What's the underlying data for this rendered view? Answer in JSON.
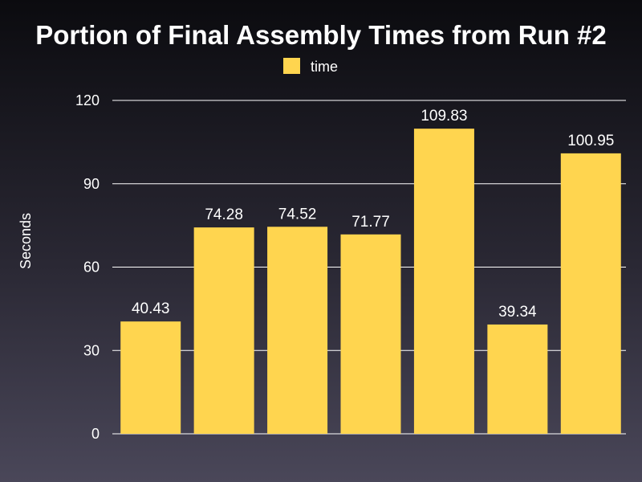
{
  "chart_data": {
    "type": "bar",
    "title": "Portion of Final Assembly Times from Run #2",
    "xlabel": "",
    "ylabel": "Seconds",
    "ylim": [
      0,
      120
    ],
    "yticks": [
      "0",
      "30",
      "60",
      "90",
      "120"
    ],
    "grid": true,
    "legend_position": "top-center",
    "series": [
      {
        "name": "time",
        "color": "#ffd54f",
        "values": [
          40.43,
          74.28,
          74.52,
          71.77,
          109.83,
          39.34,
          100.95
        ],
        "data_labels": [
          "40.43",
          "74.28",
          "74.52",
          "71.77",
          "109.83",
          "39.34",
          "100.95"
        ]
      }
    ]
  }
}
